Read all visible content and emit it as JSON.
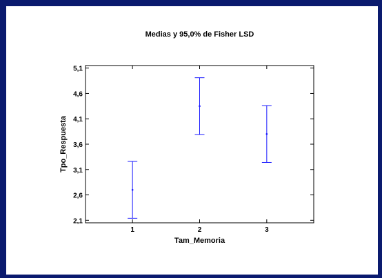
{
  "window": {
    "border_color": "#0a1a6e",
    "background": "#ffffff"
  },
  "chart_data": {
    "type": "scatter",
    "title": "Medias y 95,0% de Fisher LSD",
    "xlabel": "Tam_Memoria",
    "ylabel": "Tpo_Respuesta",
    "categories": [
      "1",
      "2",
      "3"
    ],
    "x": [
      1,
      2,
      3
    ],
    "means": [
      2.7,
      4.35,
      3.8
    ],
    "lower": [
      2.14,
      3.79,
      3.24
    ],
    "upper": [
      3.26,
      4.91,
      4.36
    ],
    "xlim": [
      0.3,
      3.7
    ],
    "ylim": [
      2.05,
      5.15
    ],
    "yticks": [
      2.1,
      2.6,
      3.1,
      3.6,
      4.1,
      4.6,
      5.1
    ],
    "ytick_labels": [
      "2,1",
      "2,6",
      "3,1",
      "3,6",
      "4,1",
      "4,6",
      "5,1"
    ],
    "grid": false,
    "series_color": "#1a1aff"
  }
}
